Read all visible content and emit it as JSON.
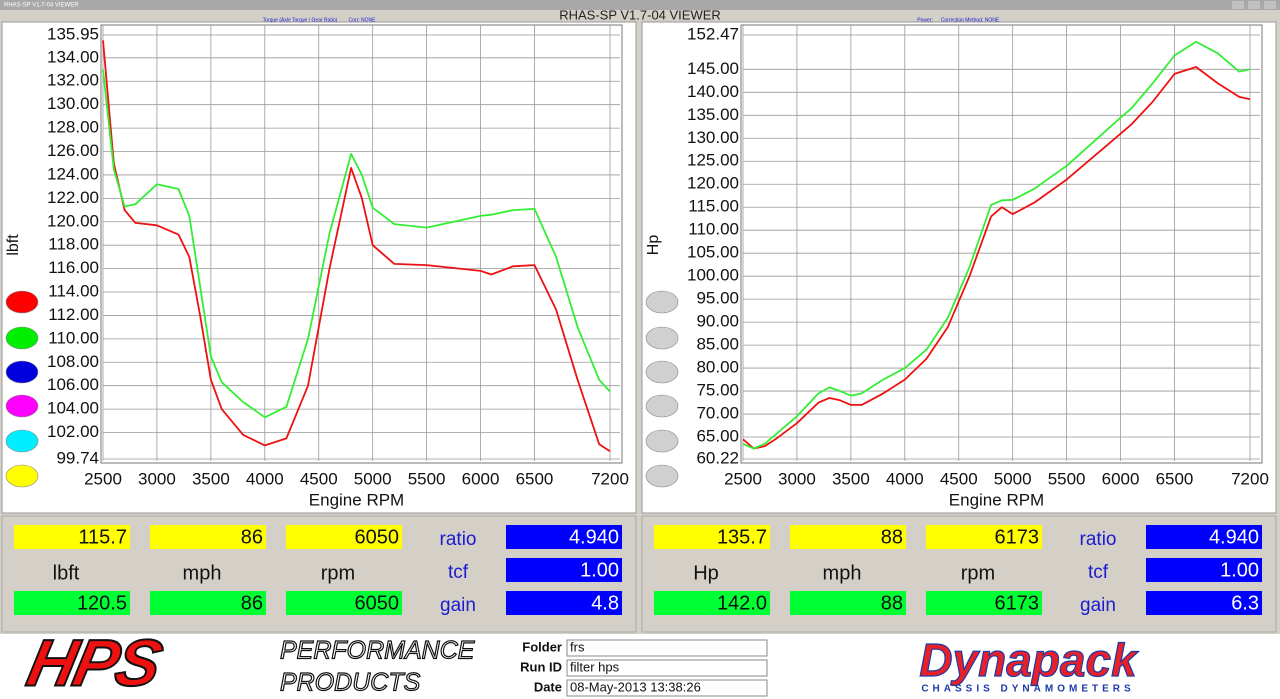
{
  "window": {
    "title": "RHAS-SP V1.7-04  VIEWER",
    "heading": "RHAS-SP V1.7-04  VIEWER"
  },
  "chart_data": [
    {
      "type": "line",
      "subtitle": "Torque (Axle Torque / Gear Ratio)",
      "note": "Corr: NONE",
      "ylabel": "lbft",
      "xlabel": "Engine RPM",
      "x": [
        2500,
        2600,
        2700,
        2800,
        3000,
        3200,
        3300,
        3400,
        3500,
        3600,
        3800,
        4000,
        4200,
        4400,
        4600,
        4800,
        4900,
        5000,
        5200,
        5500,
        6000,
        6100,
        6300,
        6500,
        6700,
        6900,
        7100,
        7200
      ],
      "series": [
        {
          "color": "#ee1111",
          "values": [
            135.5,
            125,
            121,
            119.9,
            119.7,
            118.9,
            117,
            112,
            106.5,
            104,
            101.8,
            100.9,
            101.5,
            106,
            116,
            124.6,
            122,
            118,
            116.4,
            116.3,
            115.8,
            115.5,
            116.2,
            116.3,
            112.5,
            106.5,
            101,
            100.4
          ]
        },
        {
          "color": "#33ee33",
          "values": [
            133,
            124.5,
            121.3,
            121.5,
            123.2,
            122.8,
            120.5,
            114.5,
            108.5,
            106.3,
            104.6,
            103.3,
            104.2,
            110,
            119,
            125.8,
            124,
            121.2,
            119.8,
            119.5,
            120.5,
            120.6,
            121,
            121.1,
            117,
            111,
            106.5,
            105.5
          ]
        }
      ],
      "xlim": [
        2500,
        7200
      ],
      "ylim": [
        99.74,
        135.95
      ],
      "xticks": [
        2500,
        3000,
        3500,
        4000,
        4500,
        5000,
        5500,
        6000,
        6500,
        7200
      ],
      "yticks": [
        99.74,
        {
          "value": 102,
          "label": "102.00"
        },
        {
          "value": 104,
          "label": "104.00"
        },
        {
          "value": 106,
          "label": "106.00"
        },
        {
          "value": 108,
          "label": "108.00"
        },
        {
          "value": 110,
          "label": "110.00"
        },
        {
          "value": 112,
          "label": "112.00"
        },
        {
          "value": 114,
          "label": "114.00"
        },
        {
          "value": 116,
          "label": "116.00"
        },
        {
          "value": 118,
          "label": "118.00"
        },
        {
          "value": 120,
          "label": "120.00"
        },
        {
          "value": 122,
          "label": "122.00"
        },
        {
          "value": 124,
          "label": "124.00"
        },
        {
          "value": 126,
          "label": "126.00"
        },
        {
          "value": 128,
          "label": "128.00"
        },
        {
          "value": 130,
          "label": "130.00"
        },
        {
          "value": 132,
          "label": "132.00"
        },
        {
          "value": 134,
          "label": "134.00"
        },
        135.95
      ],
      "grid": true
    },
    {
      "type": "line",
      "subtitle": "Power:",
      "note": "Correction Method: NONE",
      "ylabel": "Hp",
      "xlabel": "Engine RPM",
      "x": [
        2500,
        2600,
        2700,
        2800,
        3000,
        3200,
        3300,
        3400,
        3500,
        3600,
        3800,
        4000,
        4200,
        4400,
        4600,
        4800,
        4900,
        5000,
        5200,
        5500,
        6000,
        6100,
        6300,
        6500,
        6700,
        6900,
        7100,
        7200
      ],
      "series": [
        {
          "color": "#ee1111",
          "values": [
            64.5,
            62.5,
            63,
            64.5,
            68,
            72.5,
            73.5,
            73,
            72,
            72,
            74.5,
            77.5,
            82,
            89,
            100,
            113,
            115,
            113.5,
            116,
            121,
            131,
            133,
            138,
            144,
            145.5,
            142,
            139,
            138.5
          ]
        },
        {
          "color": "#33ee33",
          "values": [
            63.5,
            62.5,
            63.5,
            65.5,
            69.5,
            74.5,
            75.8,
            75,
            74,
            74.5,
            77.5,
            80,
            84,
            91,
            102,
            115.5,
            116.5,
            116.6,
            119,
            124,
            134.5,
            136.5,
            142,
            148,
            151,
            148.5,
            144.5,
            145
          ]
        }
      ],
      "xlim": [
        2500,
        7200
      ],
      "ylim": [
        60.22,
        152.47
      ],
      "xticks": [
        2500,
        3000,
        3500,
        4000,
        4500,
        5000,
        5500,
        6000,
        6500,
        7200
      ],
      "yticks": [
        60.22,
        {
          "value": 65,
          "label": "65.00"
        },
        {
          "value": 70,
          "label": "70.00"
        },
        {
          "value": 75,
          "label": "75.00"
        },
        {
          "value": 80,
          "label": "80.00"
        },
        {
          "value": 85,
          "label": "85.00"
        },
        {
          "value": 90,
          "label": "90.00"
        },
        {
          "value": 95,
          "label": "95.00"
        },
        {
          "value": 100,
          "label": "100.00"
        },
        {
          "value": 105,
          "label": "105.00"
        },
        {
          "value": 110,
          "label": "110.00"
        },
        {
          "value": 115,
          "label": "115.00"
        },
        {
          "value": 120,
          "label": "120.00"
        },
        {
          "value": 125,
          "label": "125.00"
        },
        {
          "value": 130,
          "label": "130.00"
        },
        {
          "value": 135,
          "label": "135.00"
        },
        {
          "value": 140,
          "label": "140.00"
        },
        {
          "value": 145,
          "label": "145.00"
        },
        152.47
      ],
      "grid": true
    }
  ],
  "readouts": [
    {
      "top": [
        "115.7",
        "86",
        "6050"
      ],
      "units": [
        "lbft",
        "mph",
        "rpm"
      ],
      "bottom": [
        "120.5",
        "86",
        "6050"
      ],
      "params": [
        {
          "label": "ratio",
          "value": "4.940"
        },
        {
          "label": "tcf",
          "value": "1.00"
        },
        {
          "label": "gain",
          "value": "4.8"
        }
      ]
    },
    {
      "top": [
        "135.7",
        "88",
        "6173"
      ],
      "units": [
        "Hp",
        "mph",
        "rpm"
      ],
      "bottom": [
        "142.0",
        "88",
        "6173"
      ],
      "params": [
        {
          "label": "ratio",
          "value": "4.940"
        },
        {
          "label": "tcf",
          "value": "1.00"
        },
        {
          "label": "gain",
          "value": "6.3"
        }
      ]
    }
  ],
  "footer": {
    "logo": "HPS",
    "brand": [
      "PERFORMANCE",
      "PRODUCTS"
    ],
    "fields": [
      {
        "label": "Folder",
        "value": "frs"
      },
      {
        "label": "Run ID",
        "value": "filter hps"
      },
      {
        "label": "Date",
        "value": "08-May-2013  13:38:26"
      }
    ],
    "dyno": "Dynapack",
    "dyno_sub": "CHASSIS DYNAMOMETERS"
  }
}
